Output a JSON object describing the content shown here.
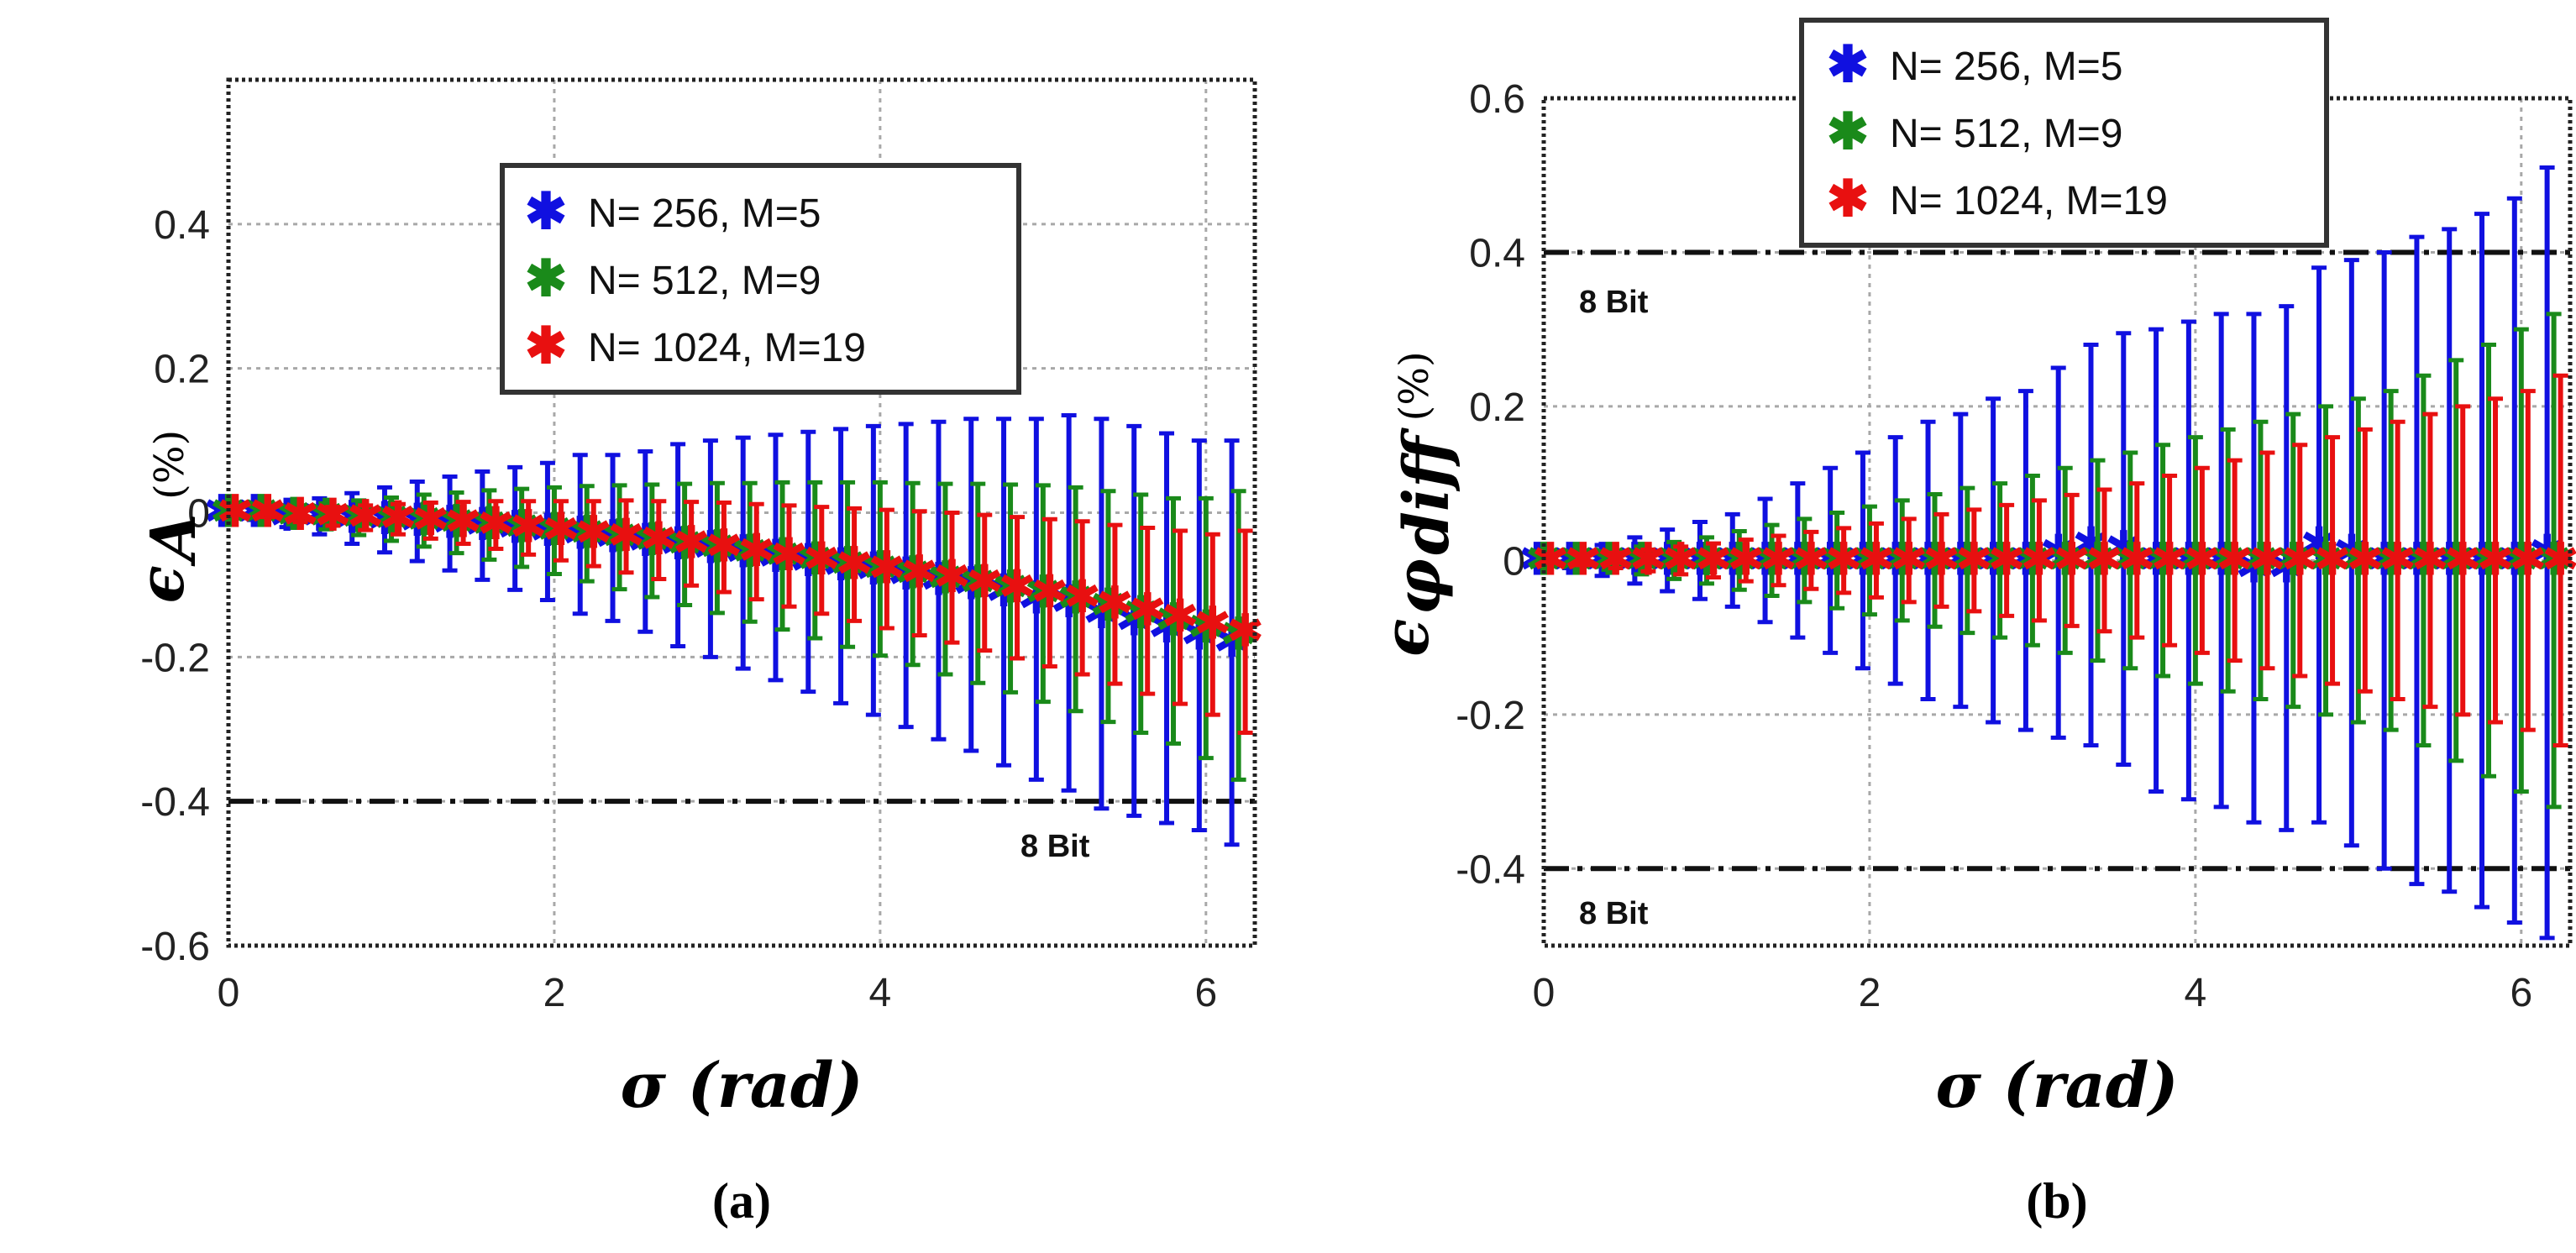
{
  "chart_data": [
    {
      "type": "scatter",
      "panel": "(a)",
      "xlabel": "σ (rad)",
      "ylabel_symbol": "ϵ",
      "ylabel_sub": "A",
      "ylabel_unit": "(%)",
      "xlim": [
        0,
        6.3
      ],
      "ylim": [
        -0.6,
        0.6
      ],
      "xticks": [
        0,
        2,
        4,
        6
      ],
      "xtick_labels": [
        "0",
        "2",
        "4",
        "6"
      ],
      "yticks": [
        -0.6,
        -0.4,
        -0.2,
        0,
        0.2,
        0.4
      ],
      "ytick_labels": [
        "-0.6",
        "-0.4",
        "-0.2",
        "0",
        "0.2",
        "0.4"
      ],
      "grid": true,
      "legend_position": "top-center",
      "reference_lines": [
        {
          "y": -0.4,
          "label": "8 Bit",
          "style": "dash-dot"
        }
      ],
      "x": [
        0.0,
        0.2,
        0.4,
        0.6,
        0.8,
        1.0,
        1.2,
        1.4,
        1.6,
        1.8,
        2.0,
        2.2,
        2.4,
        2.6,
        2.8,
        3.0,
        3.2,
        3.4,
        3.6,
        3.8,
        4.0,
        4.2,
        4.4,
        4.6,
        4.8,
        5.0,
        5.2,
        5.4,
        5.6,
        5.8,
        6.0,
        6.2
      ],
      "series": [
        {
          "name": "N= 256, M=5",
          "color": "#1010e0",
          "values": [
            0,
            0,
            -0.005,
            -0.005,
            -0.008,
            -0.01,
            -0.012,
            -0.015,
            -0.018,
            -0.022,
            -0.026,
            -0.03,
            -0.035,
            -0.04,
            -0.045,
            -0.05,
            -0.056,
            -0.062,
            -0.068,
            -0.074,
            -0.08,
            -0.087,
            -0.094,
            -0.1,
            -0.11,
            -0.12,
            -0.125,
            -0.14,
            -0.15,
            -0.16,
            -0.17,
            -0.18
          ],
          "errors": [
            0.005,
            0.01,
            0.015,
            0.025,
            0.035,
            0.045,
            0.055,
            0.065,
            0.075,
            0.085,
            0.095,
            0.11,
            0.115,
            0.125,
            0.14,
            0.15,
            0.16,
            0.17,
            0.18,
            0.19,
            0.2,
            0.21,
            0.22,
            0.23,
            0.24,
            0.25,
            0.26,
            0.27,
            0.27,
            0.27,
            0.27,
            0.28
          ]
        },
        {
          "name": "N= 512, M=9",
          "color": "#1a8a1a",
          "values": [
            0,
            0,
            -0.004,
            -0.005,
            -0.007,
            -0.009,
            -0.011,
            -0.014,
            -0.017,
            -0.021,
            -0.025,
            -0.029,
            -0.034,
            -0.039,
            -0.044,
            -0.049,
            -0.055,
            -0.06,
            -0.066,
            -0.072,
            -0.078,
            -0.085,
            -0.092,
            -0.098,
            -0.105,
            -0.112,
            -0.12,
            -0.13,
            -0.14,
            -0.15,
            -0.16,
            -0.17
          ],
          "errors": [
            0.004,
            0.008,
            0.012,
            0.018,
            0.024,
            0.03,
            0.036,
            0.042,
            0.048,
            0.054,
            0.06,
            0.066,
            0.072,
            0.078,
            0.084,
            0.09,
            0.096,
            0.102,
            0.108,
            0.114,
            0.12,
            0.126,
            0.132,
            0.138,
            0.144,
            0.15,
            0.155,
            0.16,
            0.165,
            0.17,
            0.18,
            0.2
          ]
        },
        {
          "name": "N= 1024, M=19",
          "color": "#e81010",
          "values": [
            0,
            0,
            -0.004,
            -0.005,
            -0.007,
            -0.009,
            -0.011,
            -0.014,
            -0.017,
            -0.021,
            -0.025,
            -0.029,
            -0.033,
            -0.038,
            -0.043,
            -0.048,
            -0.054,
            -0.06,
            -0.066,
            -0.072,
            -0.078,
            -0.084,
            -0.09,
            -0.097,
            -0.104,
            -0.111,
            -0.118,
            -0.127,
            -0.136,
            -0.145,
            -0.155,
            -0.165
          ],
          "errors": [
            0.003,
            0.006,
            0.009,
            0.013,
            0.017,
            0.021,
            0.025,
            0.029,
            0.033,
            0.037,
            0.041,
            0.045,
            0.05,
            0.054,
            0.058,
            0.062,
            0.066,
            0.07,
            0.074,
            0.078,
            0.082,
            0.086,
            0.09,
            0.094,
            0.098,
            0.102,
            0.106,
            0.11,
            0.115,
            0.12,
            0.125,
            0.14
          ]
        }
      ]
    },
    {
      "type": "scatter",
      "panel": "(b)",
      "xlabel": "σ (rad)",
      "ylabel_symbol": "ϵ",
      "ylabel_sub": "φ",
      "ylabel_subsub": "diff",
      "ylabel_unit": "(%)",
      "xlim": [
        0,
        6.3
      ],
      "ylim": [
        -0.5,
        0.6
      ],
      "xticks": [
        0,
        2,
        4,
        6
      ],
      "xtick_labels": [
        "0",
        "2",
        "4",
        "6"
      ],
      "yticks": [
        -0.4,
        -0.2,
        0,
        0.2,
        0.4,
        0.6
      ],
      "ytick_labels": [
        "-0.4",
        "-0.2",
        "0",
        "0.2",
        "0.4",
        "0.6"
      ],
      "grid": true,
      "legend_position": "top-center",
      "reference_lines": [
        {
          "y": 0.4,
          "label": "8 Bit",
          "style": "dash-dot"
        },
        {
          "y": -0.4,
          "label": "8 Bit",
          "style": "dash-dot"
        }
      ],
      "x": [
        0.0,
        0.2,
        0.4,
        0.6,
        0.8,
        1.0,
        1.2,
        1.4,
        1.6,
        1.8,
        2.0,
        2.2,
        2.4,
        2.6,
        2.8,
        3.0,
        3.2,
        3.4,
        3.6,
        3.8,
        4.0,
        4.2,
        4.4,
        4.6,
        4.8,
        5.0,
        5.2,
        5.4,
        5.6,
        5.8,
        6.0,
        6.2
      ],
      "series": [
        {
          "name": "N= 256, M=5",
          "color": "#1010e0",
          "values": [
            0,
            0,
            0,
            0,
            0,
            0,
            0,
            0,
            0,
            0,
            0,
            0,
            0,
            0,
            0,
            0,
            0.01,
            0.02,
            0.015,
            0,
            0,
            0,
            -0.01,
            -0.01,
            0.02,
            0.01,
            0,
            0,
            0,
            0,
            0,
            0.01
          ],
          "errors": [
            0.005,
            0.01,
            0.02,
            0.03,
            0.04,
            0.05,
            0.06,
            0.08,
            0.1,
            0.12,
            0.14,
            0.16,
            0.18,
            0.19,
            0.21,
            0.22,
            0.24,
            0.26,
            0.28,
            0.3,
            0.31,
            0.32,
            0.33,
            0.34,
            0.36,
            0.38,
            0.4,
            0.42,
            0.43,
            0.45,
            0.47,
            0.5
          ]
        },
        {
          "name": "N= 512, M=9",
          "color": "#1a8a1a",
          "values": [
            0,
            0,
            0,
            0,
            0,
            0,
            0,
            0,
            0,
            0,
            0,
            0,
            0,
            0,
            0,
            0,
            0,
            0,
            0,
            0,
            0,
            0,
            0,
            0,
            0,
            0,
            0,
            0,
            0,
            0,
            0,
            0
          ],
          "errors": [
            0.004,
            0.008,
            0.012,
            0.018,
            0.024,
            0.03,
            0.038,
            0.046,
            0.054,
            0.062,
            0.07,
            0.078,
            0.086,
            0.094,
            0.1,
            0.11,
            0.12,
            0.13,
            0.14,
            0.15,
            0.16,
            0.17,
            0.18,
            0.19,
            0.2,
            0.21,
            0.22,
            0.24,
            0.26,
            0.28,
            0.3,
            0.32
          ]
        },
        {
          "name": "N= 1024, M=19",
          "color": "#e81010",
          "values": [
            0,
            0,
            0,
            0,
            0,
            0,
            0,
            0,
            0,
            0,
            0,
            0,
            0,
            0,
            0,
            0,
            0,
            0,
            0,
            0,
            0,
            0,
            0,
            0,
            0,
            0,
            0,
            0,
            0,
            0,
            0,
            0
          ],
          "errors": [
            0.003,
            0.006,
            0.01,
            0.014,
            0.018,
            0.022,
            0.027,
            0.032,
            0.037,
            0.042,
            0.048,
            0.054,
            0.06,
            0.066,
            0.072,
            0.078,
            0.085,
            0.092,
            0.1,
            0.11,
            0.12,
            0.13,
            0.14,
            0.15,
            0.16,
            0.17,
            0.18,
            0.19,
            0.2,
            0.21,
            0.22,
            0.24
          ]
        }
      ]
    }
  ]
}
